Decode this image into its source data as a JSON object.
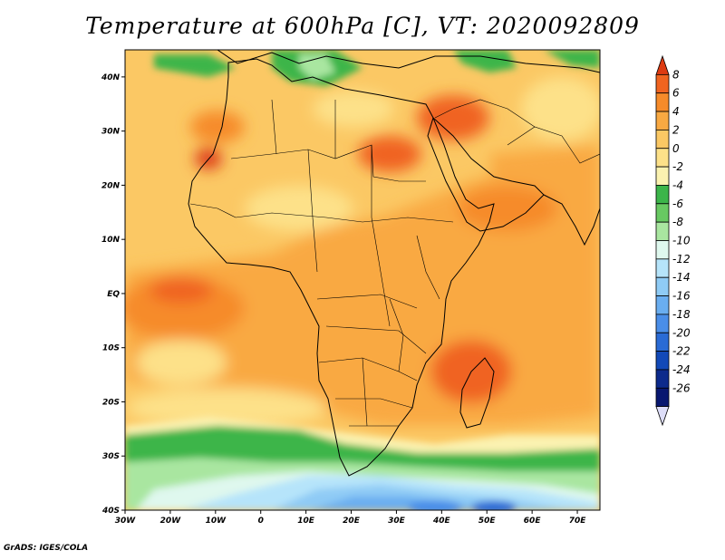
{
  "title": "Temperature at 600hPa [C], VT: 2020092809",
  "footer": "GrADS: IGES/COLA",
  "map": {
    "lon_range": [
      -30,
      75
    ],
    "lat_range": [
      -40,
      45
    ],
    "lon_ticks": [
      "30W",
      "20W",
      "10W",
      "0",
      "10E",
      "20E",
      "30E",
      "40E",
      "50E",
      "60E",
      "70E"
    ],
    "lat_ticks": [
      "40S",
      "30S",
      "20S",
      "10S",
      "EQ",
      "10N",
      "20N",
      "30N",
      "40N"
    ]
  },
  "colorbar": {
    "labels": [
      "8",
      "6",
      "4",
      "2",
      "0",
      "-2",
      "-4",
      "-6",
      "-8",
      "-10",
      "-12",
      "-14",
      "-16",
      "-18",
      "-20",
      "-22",
      "-24",
      "-26"
    ],
    "colors": [
      "#dd3b12",
      "#f06420",
      "#f68b2a",
      "#f9a942",
      "#fbc864",
      "#fde189",
      "#fbf2b0",
      "#3cb54a",
      "#68c962",
      "#a9e6a0",
      "#dff8ee",
      "#b6e4fa",
      "#8fcbf5",
      "#6aaef0",
      "#4a8ee8",
      "#2a6bd5",
      "#1249b8",
      "#0c2a8c",
      "#081770"
    ],
    "top_color": "#dd3b12",
    "bottom_color": "#ddddf8"
  }
}
